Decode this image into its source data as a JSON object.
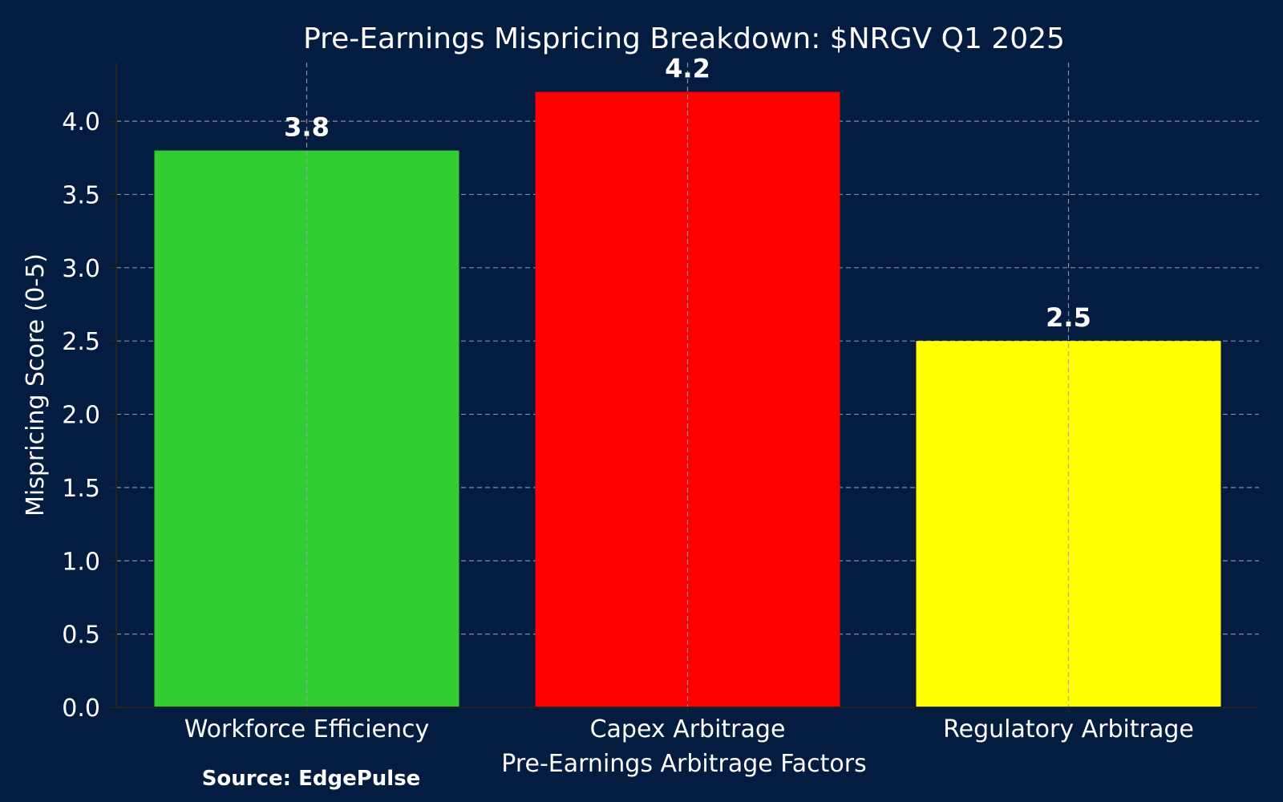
{
  "chart_data": {
    "type": "bar",
    "title": "Pre-Earnings Mispricing Breakdown: $NRGV Q1 2025",
    "xlabel": "Pre-Earnings Arbitrage Factors",
    "ylabel": "Mispricing Score (0-5)",
    "categories": [
      "Workforce Efficiency",
      "Capex Arbitrage",
      "Regulatory Arbitrage"
    ],
    "values": [
      3.8,
      4.2,
      2.5
    ],
    "value_labels": [
      "3.8",
      "4.2",
      "2.5"
    ],
    "colors": [
      "#32cd32",
      "#ff0000",
      "#ffff00"
    ],
    "ylim": [
      0,
      4.4
    ],
    "yticks": [
      0.0,
      0.5,
      1.0,
      1.5,
      2.0,
      2.5,
      3.0,
      3.5,
      4.0
    ],
    "ytick_labels": [
      "0.0",
      "0.5",
      "1.0",
      "1.5",
      "2.0",
      "2.5",
      "3.0",
      "3.5",
      "4.0"
    ],
    "grid": true,
    "background_color": "#041c40",
    "text_color": "#ffffff",
    "source": "Source: EdgePulse"
  }
}
